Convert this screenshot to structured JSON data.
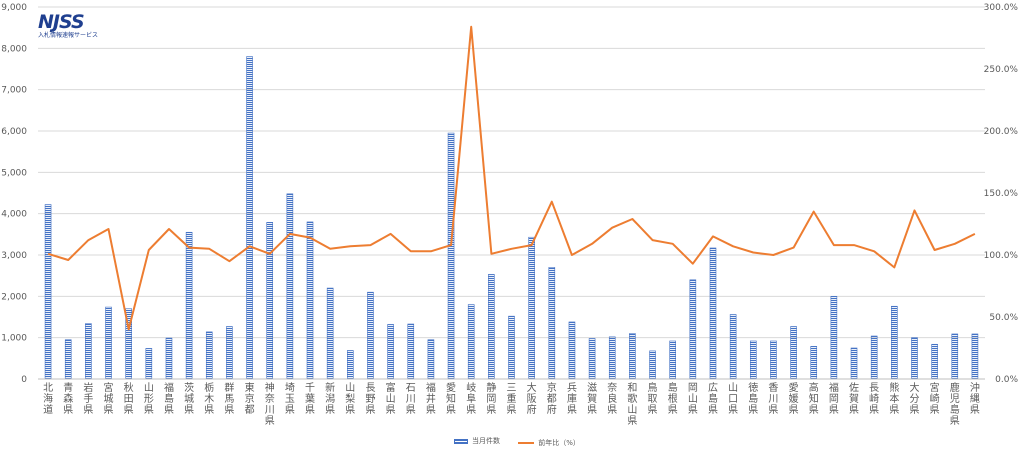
{
  "logo": {
    "mark": "NJSS",
    "subtitle": "入札情報速報サービス"
  },
  "colors": {
    "bar": "#4472c4",
    "line": "#ed7d31",
    "grid": "#d9d9d9",
    "axis_text": "#595959"
  },
  "chart_data": {
    "type": "bar",
    "title": "",
    "xlabel": "",
    "ylabel": "",
    "categories": [
      "北海道",
      "青森県",
      "岩手県",
      "宮城県",
      "秋田県",
      "山形県",
      "福島県",
      "茨城県",
      "栃木県",
      "群馬県",
      "東京都",
      "神奈川県",
      "埼玉県",
      "千葉県",
      "新潟県",
      "山梨県",
      "長野県",
      "富山県",
      "石川県",
      "福井県",
      "愛知県",
      "岐阜県",
      "静岡県",
      "三重県",
      "大阪府",
      "京都府",
      "兵庫県",
      "滋賀県",
      "奈良県",
      "和歌山県",
      "鳥取県",
      "島根県",
      "岡山県",
      "広島県",
      "山口県",
      "徳島県",
      "香川県",
      "愛媛県",
      "高知県",
      "福岡県",
      "佐賀県",
      "長崎県",
      "熊本県",
      "大分県",
      "宮崎県",
      "鹿児島県",
      "沖縄県"
    ],
    "ylim": [
      0,
      9000
    ],
    "y_ticks": [
      "0",
      "1,000",
      "2,000",
      "3,000",
      "4,000",
      "5,000",
      "6,000",
      "7,000",
      "8,000",
      "9,000"
    ],
    "y2lim": [
      0,
      300
    ],
    "y2_ticks": [
      "0.0%",
      "50.0%",
      "100.0%",
      "150.0%",
      "200.0%",
      "250.0%",
      "300.0%"
    ],
    "grid": true,
    "legend_position": "bottom",
    "series": [
      {
        "name": "当月件数",
        "type": "bar",
        "axis": "left",
        "values": [
          4220,
          950,
          1340,
          1740,
          1700,
          740,
          990,
          3550,
          1140,
          1270,
          7800,
          3790,
          4480,
          3800,
          2200,
          690,
          2100,
          1320,
          1330,
          950,
          5950,
          1800,
          2530,
          1520,
          3430,
          2700,
          1380,
          980,
          1020,
          1100,
          680,
          920,
          2400,
          3170,
          1560,
          920,
          920,
          1270,
          790,
          2000,
          750,
          1040,
          1760,
          1000,
          840,
          1090,
          1090
        ]
      },
      {
        "name": "前年比（%）",
        "type": "line",
        "axis": "right",
        "values": [
          101,
          96,
          112,
          121,
          40,
          104,
          121,
          106,
          105,
          95,
          107,
          101,
          117,
          114,
          105,
          107,
          108,
          117,
          103,
          103,
          108,
          284,
          101,
          105,
          108,
          143,
          100,
          109,
          122,
          129,
          112,
          109,
          93,
          115,
          107,
          102,
          100,
          106,
          135,
          108,
          108,
          103,
          90,
          136,
          104,
          109,
          117
        ]
      }
    ]
  }
}
